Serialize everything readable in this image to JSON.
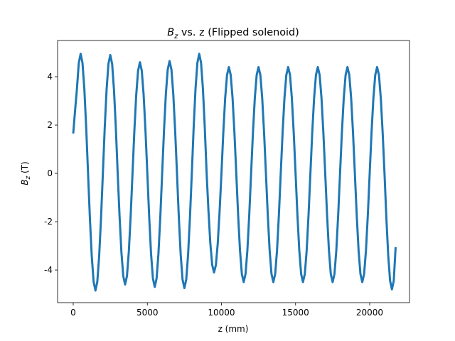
{
  "chart_data": {
    "type": "line",
    "title": {
      "symbol": "B",
      "subscript": "z",
      "rest": " vs. z (Flipped solenoid)"
    },
    "x_label": "z (mm)",
    "y_label": {
      "symbol": "B",
      "subscript": "z",
      "rest": " (T)"
    },
    "color": "#1f77b4",
    "xlim": [
      -1055,
      22686
    ],
    "ylim": [
      -5.35,
      5.5
    ],
    "xticks": [
      0,
      5000,
      10000,
      15000,
      20000
    ],
    "yticks": [
      -4,
      -2,
      0,
      2,
      4
    ],
    "x": [
      0,
      125,
      250,
      375,
      500,
      625,
      750,
      875,
      1000,
      1125,
      1250,
      1375,
      1500,
      1625,
      1750,
      1875,
      2000,
      2125,
      2250,
      2375,
      2500,
      2625,
      2750,
      2875,
      3000,
      3125,
      3250,
      3375,
      3500,
      3625,
      3750,
      3875,
      4000,
      4125,
      4250,
      4375,
      4500,
      4625,
      4750,
      4875,
      5000,
      5125,
      5250,
      5375,
      5500,
      5625,
      5750,
      5875,
      6000,
      6125,
      6250,
      6375,
      6500,
      6625,
      6750,
      6875,
      7000,
      7125,
      7250,
      7375,
      7500,
      7625,
      7750,
      7875,
      8000,
      8125,
      8250,
      8375,
      8500,
      8625,
      8750,
      8875,
      9000,
      9125,
      9250,
      9375,
      9500,
      9625,
      9750,
      9875,
      10000,
      10125,
      10250,
      10375,
      10500,
      10625,
      10750,
      10875,
      11000,
      11125,
      11250,
      11375,
      11500,
      11625,
      11750,
      11875,
      12000,
      12125,
      12250,
      12375,
      12500,
      12625,
      12750,
      12875,
      13000,
      13125,
      13250,
      13375,
      13500,
      13625,
      13750,
      13875,
      14000,
      14125,
      14250,
      14375,
      14500,
      14625,
      14750,
      14875,
      15000,
      15125,
      15250,
      15375,
      15500,
      15625,
      15750,
      15875,
      16000,
      16125,
      16250,
      16375,
      16500,
      16625,
      16750,
      16875,
      17000,
      17125,
      17250,
      17375,
      17500,
      17625,
      17750,
      17875,
      18000,
      18125,
      18250,
      18375,
      18500,
      18625,
      18750,
      18875,
      19000,
      19125,
      19250,
      19375,
      19500,
      19625,
      19750,
      19875,
      20000,
      20125,
      20250,
      20375,
      20500,
      20625,
      20750,
      20875,
      21000,
      21125,
      21250,
      21375,
      21500,
      21625,
      21750
    ],
    "values": [
      1.65,
      2.6,
      3.5,
      4.57,
      4.95,
      4.57,
      3.5,
      1.9,
      0,
      -1.86,
      -3.43,
      -4.48,
      -4.85,
      -4.48,
      -3.43,
      -1.86,
      0,
      1.88,
      3.46,
      4.53,
      4.9,
      4.53,
      3.46,
      1.88,
      0,
      -1.76,
      -3.25,
      -4.25,
      -4.6,
      -4.25,
      -3.25,
      -1.76,
      0,
      1.76,
      3.25,
      4.25,
      4.6,
      4.25,
      3.25,
      1.76,
      0,
      -1.8,
      -3.32,
      -4.34,
      -4.7,
      -4.34,
      -3.32,
      -1.8,
      0,
      1.78,
      3.29,
      4.3,
      4.65,
      4.3,
      3.29,
      1.78,
      0,
      -1.82,
      -3.36,
      -4.39,
      -4.75,
      -4.39,
      -3.36,
      -1.82,
      0,
      1.9,
      3.5,
      4.57,
      4.95,
      4.57,
      3.5,
      1.9,
      0,
      -1.57,
      -2.9,
      -3.79,
      -4.1,
      -3.79,
      -2.9,
      -1.57,
      0,
      1.69,
      3.11,
      4.07,
      4.4,
      4.07,
      3.11,
      1.69,
      0,
      -1.72,
      -3.18,
      -4.16,
      -4.5,
      -4.16,
      -3.18,
      -1.72,
      0,
      1.69,
      3.11,
      4.07,
      4.4,
      4.07,
      3.11,
      1.69,
      0,
      -1.72,
      -3.18,
      -4.16,
      -4.5,
      -4.16,
      -3.18,
      -1.72,
      0,
      1.69,
      3.11,
      4.07,
      4.4,
      4.07,
      3.11,
      1.69,
      0,
      -1.72,
      -3.18,
      -4.16,
      -4.5,
      -4.16,
      -3.18,
      -1.72,
      0,
      1.69,
      3.11,
      4.07,
      4.4,
      4.07,
      3.11,
      1.69,
      0,
      -1.72,
      -3.18,
      -4.16,
      -4.5,
      -4.16,
      -3.18,
      -1.72,
      0,
      1.69,
      3.11,
      4.07,
      4.4,
      4.07,
      3.11,
      1.69,
      0,
      -1.72,
      -3.18,
      -4.16,
      -4.5,
      -4.16,
      -3.18,
      -1.72,
      0,
      1.69,
      3.11,
      4.07,
      4.4,
      4.07,
      3.11,
      1.69,
      0,
      -1.84,
      -3.39,
      -4.44,
      -4.8,
      -4.44,
      -3.05
    ]
  }
}
